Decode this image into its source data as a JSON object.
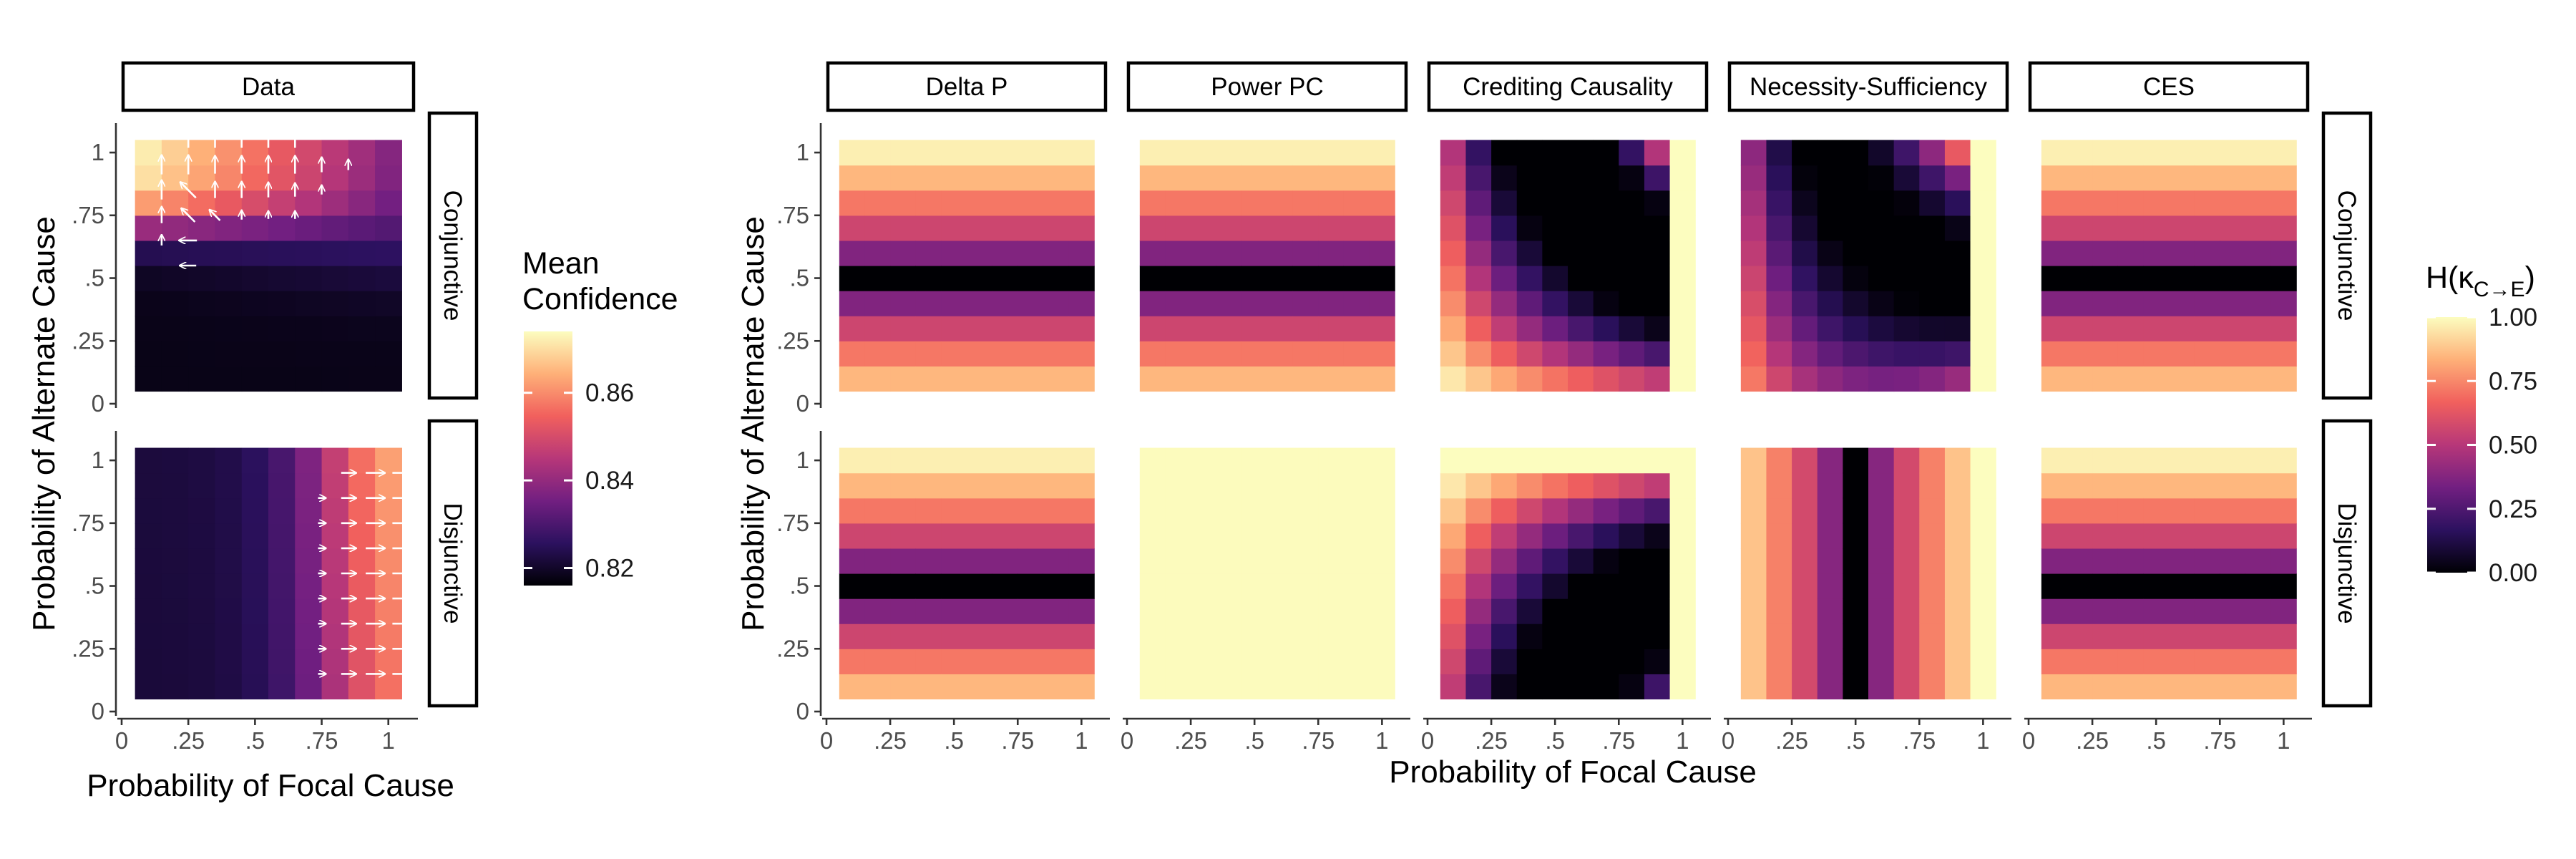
{
  "chart_data": [
    {
      "type": "heatmap",
      "panel": "Data",
      "facet_labels": [
        "Data"
      ],
      "row_labels": [
        "Conjunctive",
        "Disjunctive"
      ],
      "xlabel": "Probability of Focal Cause",
      "ylabel": "Probability of Alternate Cause",
      "xlim": [
        0,
        1
      ],
      "ylim": [
        0,
        1
      ],
      "x_ticks": [
        "0",
        ".25",
        ".5",
        ".75",
        "1"
      ],
      "y_ticks": [
        "0",
        ".25",
        ".5",
        ".75",
        "1"
      ],
      "grid_values": [
        0.1,
        0.2,
        0.3,
        0.4,
        0.5,
        0.6,
        0.7,
        0.8,
        0.9,
        1.0
      ],
      "legend": {
        "title_lines": [
          "Mean",
          "Confidence"
        ],
        "ticks": [
          "0.82",
          "0.84",
          "0.86"
        ],
        "tick_values": [
          0.82,
          0.84,
          0.86
        ],
        "range": [
          0.816,
          0.874
        ],
        "colors": [
          "#000004",
          "#2c115f",
          "#721f81",
          "#b73779",
          "#f1605d",
          "#feb078",
          "#fcfdbf"
        ]
      },
      "notes": "Arrows indicate direction of increasing confidence at selected cells",
      "has_arrows": true
    },
    {
      "type": "heatmap",
      "panel": "Models",
      "facet_labels": [
        "Delta P",
        "Power PC",
        "Crediting Causality",
        "Necessity-Sufficiency",
        "CES"
      ],
      "row_labels": [
        "Conjunctive",
        "Disjunctive"
      ],
      "xlabel": "Probability of Focal Cause",
      "ylabel": "Probability of Alternate Cause",
      "xlim": [
        0,
        1
      ],
      "ylim": [
        0,
        1
      ],
      "x_ticks": [
        "0",
        ".25",
        ".5",
        ".75",
        "1"
      ],
      "y_ticks": [
        "0",
        ".25",
        ".5",
        ".75",
        "1"
      ],
      "grid_values": [
        0.1,
        0.2,
        0.3,
        0.4,
        0.5,
        0.6,
        0.7,
        0.8,
        0.9,
        1.0
      ],
      "legend": {
        "title_main": "H(κ",
        "title_sub": "C→E",
        "title_close": ")",
        "ticks": [
          "0.00",
          "0.25",
          "0.50",
          "0.75",
          "1.00"
        ],
        "tick_values": [
          0,
          0.25,
          0.5,
          0.75,
          1.0
        ],
        "range": [
          0,
          1
        ],
        "colors": [
          "#000004",
          "#2c115f",
          "#721f81",
          "#b73779",
          "#f1605d",
          "#feb078",
          "#fcfdbf"
        ]
      },
      "notes": "Cell value = entropy H of the model's causal strength estimate; values estimated from color"
    }
  ]
}
